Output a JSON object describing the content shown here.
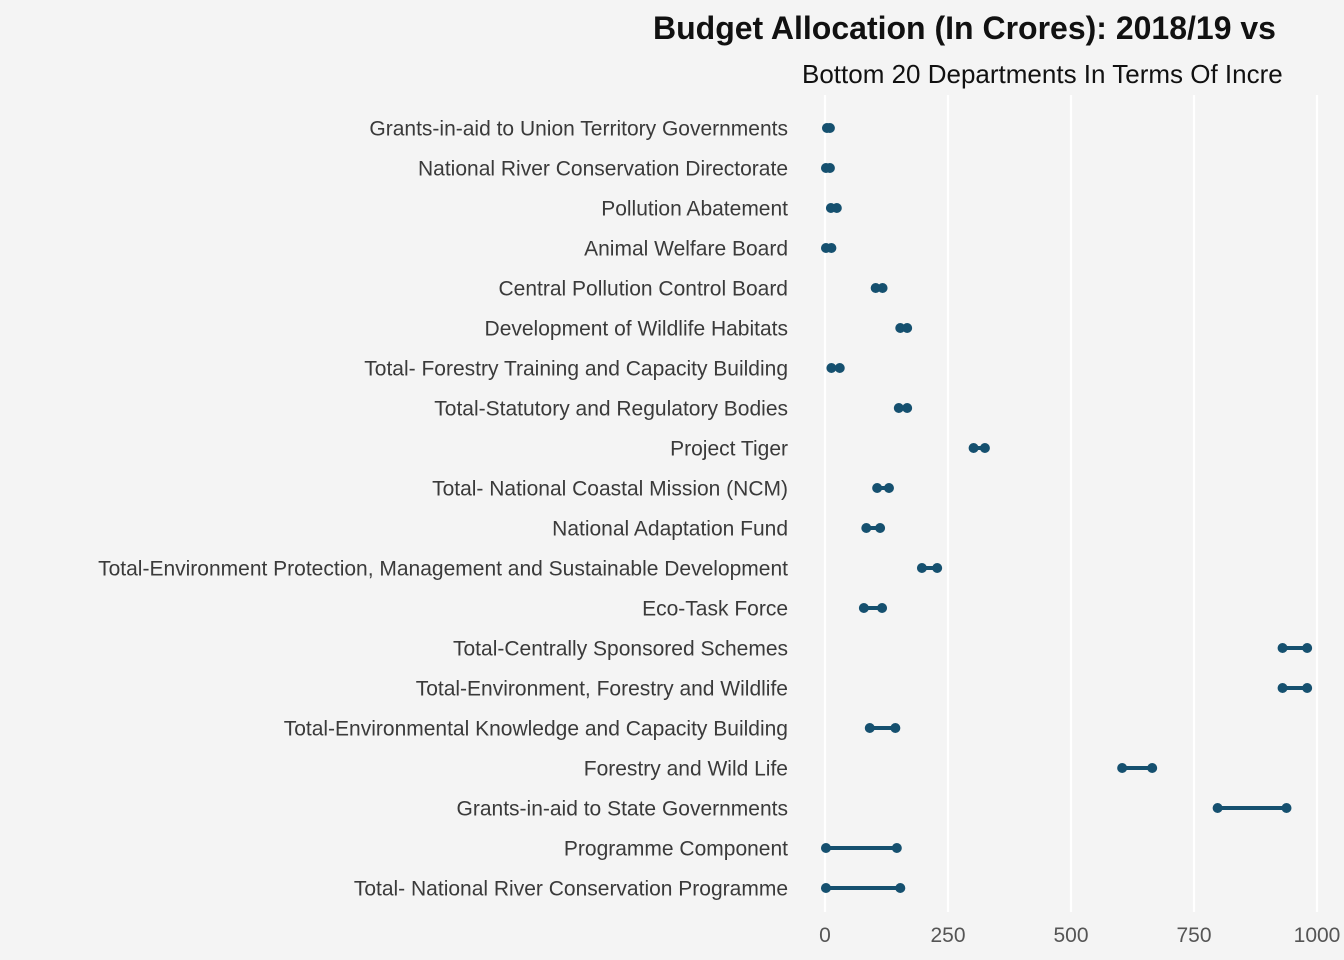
{
  "chart_data": {
    "type": "dumbbell",
    "title": "Budget Allocation (In Crores): 2018/19 vs",
    "subtitle": "Bottom 20 Departments In Terms Of Incre",
    "xlabel": "",
    "ylabel": "",
    "xlim": [
      0,
      1000
    ],
    "x_ticks": [
      0,
      250,
      500,
      750,
      1000
    ],
    "x_tick_labels": [
      "0",
      "250",
      "500",
      "750",
      "1000"
    ],
    "grid": "vertical",
    "color": "#15506f",
    "categories": [
      "Grants-in-aid to Union Territory Governments",
      "National River Conservation Directorate",
      "Pollution Abatement",
      "Animal Welfare Board",
      "Central Pollution Control Board",
      "Development of Wildlife Habitats",
      "Total- Forestry Training and Capacity Building",
      "Total-Statutory and Regulatory Bodies",
      "Project Tiger",
      "Total- National Coastal Mission (NCM)",
      "National Adaptation Fund",
      "Total-Environment Protection, Management and Sustainable Development",
      "Eco-Task Force",
      "Total-Centrally Sponsored Schemes",
      "Total-Environment, Forestry and Wildlife",
      "Total-Environmental Knowledge and Capacity Building",
      "Forestry and Wild Life",
      "Grants-in-aid to State Governments",
      "Programme Component",
      "Total- National River Conservation Programme"
    ],
    "series": [
      {
        "values": [
          4,
          2,
          12,
          2,
          103,
          153,
          13,
          150,
          302,
          106,
          84,
          197,
          79,
          930,
          930,
          91,
          604,
          798,
          2,
          2
        ]
      },
      {
        "values": [
          10,
          10,
          24,
          13,
          117,
          167,
          30,
          167,
          325,
          130,
          112,
          228,
          116,
          980,
          980,
          143,
          665,
          938,
          146,
          153
        ]
      }
    ]
  }
}
